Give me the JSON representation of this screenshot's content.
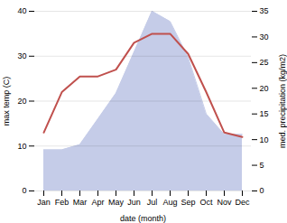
{
  "chart_data": {
    "type": "line",
    "xlabel": "date (month)",
    "ylabel": "max temp (C)",
    "y2label": "med. precipitation (kg/m2)",
    "categories": [
      "Jan",
      "Feb",
      "Mar",
      "Apr",
      "May",
      "Jun",
      "Jul",
      "Aug",
      "Sep",
      "Oct",
      "Nov",
      "Dec"
    ],
    "series": [
      {
        "type": "area",
        "axis": "y2",
        "color": "#c5cce8",
        "values": [
          8,
          8,
          9,
          14,
          19,
          27,
          35,
          33,
          26,
          15,
          11,
          11
        ]
      },
      {
        "type": "line",
        "color": "#c0504d",
        "values": [
          13,
          22,
          25.5,
          25.5,
          27,
          33,
          35,
          35,
          30.5,
          22,
          13,
          12
        ]
      }
    ],
    "ylim": [
      0,
      40
    ],
    "yticks": [
      0,
      10,
      20,
      30,
      40
    ],
    "y2lim": [
      0,
      35
    ],
    "y2ticks": [
      0,
      5,
      10,
      15,
      20,
      25,
      30,
      35
    ],
    "grid": true
  }
}
